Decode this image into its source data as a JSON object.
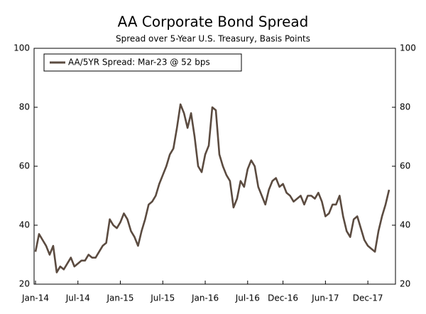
{
  "chart_data": {
    "type": "line",
    "title": "AA Corporate Bond Spread",
    "subtitle": "Spread over 5-Year U.S. Treasury, Basis Points",
    "categories": [
      "Jan-14",
      null,
      null,
      null,
      null,
      null,
      null,
      null,
      null,
      null,
      null,
      null,
      "Jul-14",
      null,
      null,
      null,
      null,
      null,
      null,
      null,
      null,
      null,
      null,
      null,
      "Jan-15",
      null,
      null,
      null,
      null,
      null,
      null,
      null,
      null,
      null,
      null,
      null,
      "Jul-15",
      null,
      null,
      null,
      null,
      null,
      null,
      null,
      null,
      null,
      null,
      null,
      "Jan-16",
      null,
      null,
      null,
      null,
      null,
      null,
      null,
      null,
      null,
      null,
      null,
      "Jul-16",
      null,
      null,
      null,
      null,
      null,
      null,
      null,
      null,
      null,
      "Dec-16",
      null,
      null,
      null,
      null,
      null,
      null,
      null,
      null,
      null,
      null,
      null,
      "Jun-17",
      null,
      null,
      null,
      null,
      null,
      null,
      null,
      null,
      null,
      null,
      null,
      "Dec-17",
      null,
      null,
      null,
      null,
      null,
      null
    ],
    "series": [
      {
        "name": "AA/5YR Spread: Mar-23 @ 52 bps",
        "color": "#5b4b40",
        "values": [
          31,
          37,
          35,
          33,
          30,
          33,
          24,
          26,
          25,
          27,
          29,
          26,
          27,
          28,
          28,
          30,
          29,
          29,
          31,
          33,
          34,
          42,
          40,
          39,
          41,
          44,
          42,
          38,
          36,
          33,
          38,
          42,
          47,
          48,
          50,
          54,
          57,
          60,
          64,
          66,
          73,
          81,
          78,
          73,
          78,
          70,
          60,
          58,
          64,
          67,
          80,
          79,
          64,
          60,
          57,
          55,
          46,
          49,
          55,
          53,
          59,
          62,
          60,
          53,
          50,
          47,
          52,
          55,
          56,
          53,
          54,
          51,
          50,
          48,
          49,
          50,
          47,
          50,
          50,
          49,
          51,
          48,
          43,
          44,
          47,
          47,
          50,
          43,
          38,
          36,
          42,
          43,
          39,
          35,
          33,
          32,
          31,
          38,
          43,
          47,
          52
        ]
      }
    ],
    "ylim": [
      20,
      100
    ],
    "yticks": [
      20,
      40,
      60,
      80,
      100
    ],
    "y2lim": [
      20,
      100
    ],
    "y2ticks": [
      20,
      40,
      60,
      80,
      100
    ],
    "grid": false,
    "legend": "upper left"
  }
}
